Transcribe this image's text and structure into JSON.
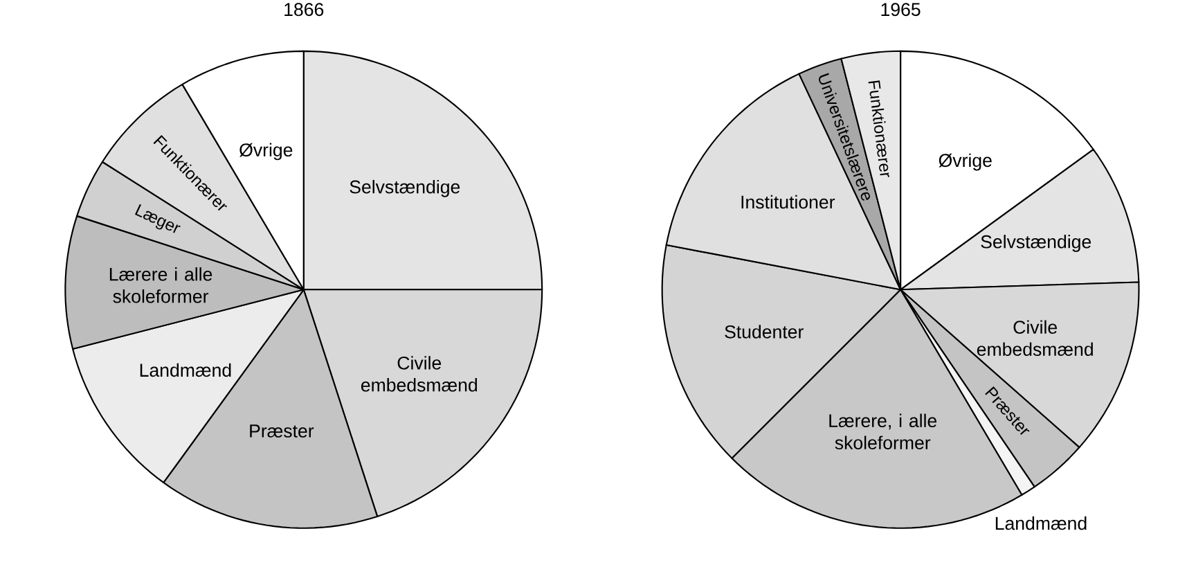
{
  "chart_data": [
    {
      "type": "pie",
      "title": "1866",
      "categories": [
        "Selvstændige",
        "Civile embedsmænd",
        "Præster",
        "Landmænd",
        "Lærere i alle skoleformer",
        "Læger",
        "Funktionærer",
        "Øvrige"
      ],
      "values": [
        25,
        20,
        15,
        11,
        9,
        4,
        7.5,
        8.5
      ],
      "colors": [
        "#e4e4e4",
        "#d8d8d8",
        "#c4c4c4",
        "#ececec",
        "#bdbdbd",
        "#d0d0d0",
        "#e0e0e0",
        "#ffffff"
      ]
    },
    {
      "type": "pie",
      "title": "1965",
      "categories": [
        "Øvrige",
        "Selvstændige",
        "Civile embedsmænd",
        "Præster",
        "Landmænd",
        "Lærere, i alle skoleformer",
        "Studenter",
        "Institutioner",
        "Universitetslærere",
        "Funktionærer"
      ],
      "values": [
        15,
        9.5,
        12,
        4,
        1,
        21,
        15.5,
        15,
        3,
        4
      ],
      "colors": [
        "#ffffff",
        "#e4e4e4",
        "#d8d8d8",
        "#c4c4c4",
        "#f4f4f4",
        "#c8c8c8",
        "#d4d4d4",
        "#e0e0e0",
        "#a8a8a8",
        "#e8e8e8"
      ]
    }
  ]
}
